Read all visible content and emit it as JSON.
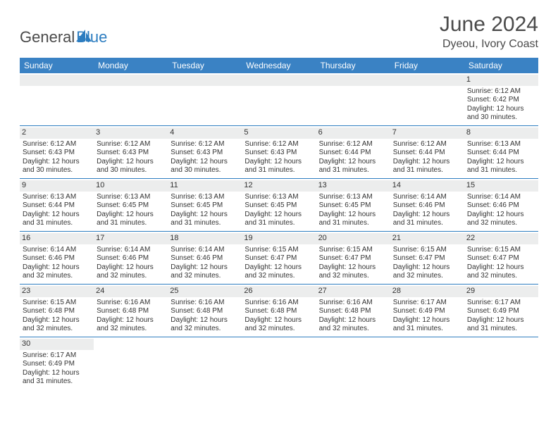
{
  "logo": {
    "text1": "General",
    "text2": "Blue",
    "text1_color": "#4a4a4a",
    "text2_color": "#2d7dc0",
    "sail_color": "#2d7dc0"
  },
  "title": "June 2024",
  "location": "Dyeou, Ivory Coast",
  "colors": {
    "header_bg": "#3a82c4",
    "header_fg": "#ffffff",
    "daynum_bg": "#eceded",
    "week_divider": "#2d7dc0",
    "text": "#333333"
  },
  "day_names": [
    "Sunday",
    "Monday",
    "Tuesday",
    "Wednesday",
    "Thursday",
    "Friday",
    "Saturday"
  ],
  "weeks": [
    [
      null,
      null,
      null,
      null,
      null,
      null,
      {
        "n": "1",
        "sr": "6:12 AM",
        "ss": "6:42 PM",
        "dl": "12 hours and 30 minutes."
      }
    ],
    [
      {
        "n": "2",
        "sr": "6:12 AM",
        "ss": "6:43 PM",
        "dl": "12 hours and 30 minutes."
      },
      {
        "n": "3",
        "sr": "6:12 AM",
        "ss": "6:43 PM",
        "dl": "12 hours and 30 minutes."
      },
      {
        "n": "4",
        "sr": "6:12 AM",
        "ss": "6:43 PM",
        "dl": "12 hours and 30 minutes."
      },
      {
        "n": "5",
        "sr": "6:12 AM",
        "ss": "6:43 PM",
        "dl": "12 hours and 31 minutes."
      },
      {
        "n": "6",
        "sr": "6:12 AM",
        "ss": "6:44 PM",
        "dl": "12 hours and 31 minutes."
      },
      {
        "n": "7",
        "sr": "6:12 AM",
        "ss": "6:44 PM",
        "dl": "12 hours and 31 minutes."
      },
      {
        "n": "8",
        "sr": "6:13 AM",
        "ss": "6:44 PM",
        "dl": "12 hours and 31 minutes."
      }
    ],
    [
      {
        "n": "9",
        "sr": "6:13 AM",
        "ss": "6:44 PM",
        "dl": "12 hours and 31 minutes."
      },
      {
        "n": "10",
        "sr": "6:13 AM",
        "ss": "6:45 PM",
        "dl": "12 hours and 31 minutes."
      },
      {
        "n": "11",
        "sr": "6:13 AM",
        "ss": "6:45 PM",
        "dl": "12 hours and 31 minutes."
      },
      {
        "n": "12",
        "sr": "6:13 AM",
        "ss": "6:45 PM",
        "dl": "12 hours and 31 minutes."
      },
      {
        "n": "13",
        "sr": "6:13 AM",
        "ss": "6:45 PM",
        "dl": "12 hours and 31 minutes."
      },
      {
        "n": "14",
        "sr": "6:14 AM",
        "ss": "6:46 PM",
        "dl": "12 hours and 31 minutes."
      },
      {
        "n": "15",
        "sr": "6:14 AM",
        "ss": "6:46 PM",
        "dl": "12 hours and 32 minutes."
      }
    ],
    [
      {
        "n": "16",
        "sr": "6:14 AM",
        "ss": "6:46 PM",
        "dl": "12 hours and 32 minutes."
      },
      {
        "n": "17",
        "sr": "6:14 AM",
        "ss": "6:46 PM",
        "dl": "12 hours and 32 minutes."
      },
      {
        "n": "18",
        "sr": "6:14 AM",
        "ss": "6:46 PM",
        "dl": "12 hours and 32 minutes."
      },
      {
        "n": "19",
        "sr": "6:15 AM",
        "ss": "6:47 PM",
        "dl": "12 hours and 32 minutes."
      },
      {
        "n": "20",
        "sr": "6:15 AM",
        "ss": "6:47 PM",
        "dl": "12 hours and 32 minutes."
      },
      {
        "n": "21",
        "sr": "6:15 AM",
        "ss": "6:47 PM",
        "dl": "12 hours and 32 minutes."
      },
      {
        "n": "22",
        "sr": "6:15 AM",
        "ss": "6:47 PM",
        "dl": "12 hours and 32 minutes."
      }
    ],
    [
      {
        "n": "23",
        "sr": "6:15 AM",
        "ss": "6:48 PM",
        "dl": "12 hours and 32 minutes."
      },
      {
        "n": "24",
        "sr": "6:16 AM",
        "ss": "6:48 PM",
        "dl": "12 hours and 32 minutes."
      },
      {
        "n": "25",
        "sr": "6:16 AM",
        "ss": "6:48 PM",
        "dl": "12 hours and 32 minutes."
      },
      {
        "n": "26",
        "sr": "6:16 AM",
        "ss": "6:48 PM",
        "dl": "12 hours and 32 minutes."
      },
      {
        "n": "27",
        "sr": "6:16 AM",
        "ss": "6:48 PM",
        "dl": "12 hours and 32 minutes."
      },
      {
        "n": "28",
        "sr": "6:17 AM",
        "ss": "6:49 PM",
        "dl": "12 hours and 31 minutes."
      },
      {
        "n": "29",
        "sr": "6:17 AM",
        "ss": "6:49 PM",
        "dl": "12 hours and 31 minutes."
      }
    ],
    [
      {
        "n": "30",
        "sr": "6:17 AM",
        "ss": "6:49 PM",
        "dl": "12 hours and 31 minutes."
      },
      null,
      null,
      null,
      null,
      null,
      null
    ]
  ],
  "labels": {
    "sunrise": "Sunrise:",
    "sunset": "Sunset:",
    "daylight": "Daylight:"
  }
}
